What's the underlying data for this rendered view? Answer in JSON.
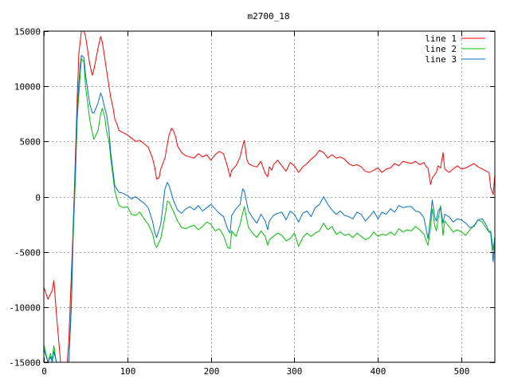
{
  "chart_data": {
    "type": "line",
    "title": "m2700_18",
    "xlabel": "",
    "ylabel": "",
    "xlim": [
      0,
      540
    ],
    "ylim": [
      -15000,
      15000
    ],
    "xticks": [
      "0",
      "100",
      "200",
      "300",
      "400",
      "500"
    ],
    "xtick_values": [
      0,
      100,
      200,
      300,
      400,
      500
    ],
    "yticks": [
      "15000",
      "10000",
      "5000",
      "0",
      "-5000",
      "-10000",
      "-15000"
    ],
    "ytick_values": [
      15000,
      10000,
      5000,
      0,
      -5000,
      -10000,
      -15000
    ],
    "grid": true,
    "legend_position": "top-right",
    "series": [
      {
        "name": "line 1",
        "color": "#ff0000",
        "x": [
          0,
          5,
          10,
          12,
          15,
          20,
          25,
          28,
          30,
          32,
          35,
          38,
          40,
          42,
          45,
          48,
          50,
          55,
          58,
          60,
          65,
          68,
          70,
          72,
          75,
          78,
          80,
          83,
          85,
          88,
          90,
          95,
          100,
          105,
          110,
          115,
          120,
          125,
          130,
          133,
          135,
          138,
          140,
          145,
          148,
          150,
          153,
          155,
          158,
          160,
          165,
          170,
          175,
          180,
          185,
          190,
          195,
          200,
          205,
          210,
          215,
          218,
          220,
          223,
          225,
          230,
          235,
          238,
          240,
          243,
          245,
          250,
          255,
          260,
          265,
          268,
          270,
          273,
          275,
          280,
          285,
          290,
          295,
          300,
          305,
          310,
          315,
          320,
          325,
          330,
          335,
          340,
          345,
          350,
          355,
          360,
          365,
          370,
          375,
          380,
          385,
          390,
          395,
          400,
          405,
          410,
          415,
          420,
          425,
          430,
          435,
          440,
          445,
          450,
          455,
          458,
          460,
          463,
          465,
          470,
          472,
          475,
          478,
          480,
          485,
          490,
          495,
          500,
          505,
          510,
          515,
          520,
          525,
          530,
          533,
          535,
          538,
          540
        ],
        "values": [
          -8200,
          -9300,
          -8500,
          -7600,
          -10500,
          -15000,
          -15000,
          -15000,
          -13000,
          -9000,
          -3000,
          4000,
          9000,
          13000,
          15000,
          15000,
          14500,
          12000,
          11000,
          11500,
          13500,
          14500,
          14000,
          13000,
          11500,
          10000,
          9000,
          8000,
          7000,
          6500,
          6000,
          5800,
          5600,
          5300,
          5000,
          5100,
          4800,
          4500,
          3500,
          2600,
          1600,
          1700,
          2500,
          3500,
          4800,
          5600,
          6200,
          6000,
          5400,
          4600,
          4000,
          3700,
          3600,
          3500,
          3900,
          3600,
          3800,
          3300,
          3800,
          4100,
          3900,
          3200,
          2700,
          1800,
          2400,
          2800,
          3600,
          4600,
          5100,
          3400,
          3000,
          2800,
          2700,
          3200,
          2100,
          1800,
          2700,
          2400,
          2900,
          3300,
          2800,
          2300,
          3100,
          2800,
          2200,
          2700,
          3000,
          3400,
          3700,
          4200,
          4000,
          3500,
          3800,
          3500,
          3600,
          3400,
          3000,
          2800,
          2900,
          2700,
          2300,
          2200,
          2400,
          2600,
          2200,
          2500,
          2600,
          3000,
          2800,
          3200,
          3100,
          3000,
          3200,
          2900,
          3100,
          2700,
          2600,
          1100,
          1700,
          2200,
          2800,
          2600,
          4000,
          2500,
          2200,
          2500,
          2800,
          2500,
          2600,
          2800,
          3000,
          2700,
          2500,
          2300,
          2200,
          800,
          200,
          2000
        ]
      },
      {
        "name": "line 2",
        "color": "#00c000",
        "x": [
          0,
          5,
          8,
          10,
          12,
          15,
          20,
          25,
          30,
          33,
          35,
          38,
          40,
          43,
          45,
          48,
          50,
          55,
          58,
          60,
          65,
          68,
          70,
          73,
          75,
          78,
          80,
          85,
          90,
          95,
          100,
          105,
          110,
          115,
          120,
          125,
          130,
          133,
          135,
          140,
          145,
          148,
          150,
          155,
          160,
          165,
          170,
          175,
          180,
          185,
          190,
          195,
          200,
          205,
          210,
          215,
          220,
          223,
          225,
          230,
          235,
          238,
          240,
          245,
          250,
          255,
          260,
          265,
          268,
          270,
          275,
          280,
          285,
          290,
          295,
          300,
          305,
          310,
          315,
          320,
          325,
          330,
          335,
          340,
          345,
          350,
          355,
          360,
          365,
          370,
          375,
          380,
          385,
          390,
          395,
          400,
          405,
          410,
          415,
          420,
          425,
          430,
          435,
          440,
          445,
          450,
          455,
          460,
          463,
          465,
          468,
          470,
          472,
          475,
          478,
          480,
          485,
          490,
          495,
          500,
          505,
          510,
          515,
          520,
          525,
          530,
          533,
          535,
          538,
          540
        ],
        "values": [
          -13400,
          -15000,
          -14200,
          -14800,
          -13500,
          -15000,
          -15000,
          -15000,
          -15000,
          -10000,
          -4000,
          2000,
          7000,
          10500,
          12500,
          12200,
          10000,
          7000,
          5800,
          5200,
          6000,
          7500,
          8000,
          7200,
          6000,
          5000,
          3500,
          500,
          -800,
          -1000,
          -900,
          -1600,
          -1700,
          -1400,
          -2000,
          -2500,
          -3300,
          -4300,
          -4600,
          -3800,
          -1800,
          -400,
          -500,
          -1300,
          -2200,
          -2800,
          -2900,
          -2700,
          -2600,
          -3000,
          -2700,
          -2300,
          -2500,
          -3100,
          -2900,
          -3500,
          -4600,
          -4700,
          -3100,
          -3600,
          -2500,
          -1500,
          -900,
          -2800,
          -3300,
          -3700,
          -3100,
          -3600,
          -4400,
          -3900,
          -3600,
          -3300,
          -3500,
          -4000,
          -3800,
          -3300,
          -4500,
          -3700,
          -3300,
          -3600,
          -3300,
          -3100,
          -2400,
          -3000,
          -2700,
          -3400,
          -3200,
          -3500,
          -3400,
          -3700,
          -3300,
          -3600,
          -3900,
          -3700,
          -3200,
          -3600,
          -3400,
          -3500,
          -3200,
          -3500,
          -2900,
          -3200,
          -3000,
          -3100,
          -2700,
          -3000,
          -3400,
          -4400,
          -2800,
          -1100,
          -2600,
          -3100,
          -2100,
          -800,
          -3500,
          -2200,
          -2700,
          -3200,
          -3000,
          -3200,
          -3500,
          -3000,
          -2600,
          -2100,
          -2300,
          -2900,
          -3200,
          -3100,
          -4800,
          -3600
        ]
      },
      {
        "name": "line 3",
        "color": "#0070d0",
        "x": [
          0,
          5,
          8,
          10,
          12,
          15,
          20,
          25,
          30,
          33,
          35,
          38,
          40,
          43,
          45,
          48,
          50,
          55,
          58,
          60,
          65,
          68,
          70,
          73,
          75,
          78,
          80,
          85,
          90,
          95,
          100,
          105,
          110,
          115,
          120,
          125,
          130,
          133,
          135,
          140,
          145,
          148,
          150,
          155,
          160,
          165,
          170,
          175,
          180,
          185,
          190,
          195,
          200,
          205,
          210,
          215,
          220,
          223,
          225,
          230,
          235,
          238,
          240,
          245,
          250,
          255,
          260,
          265,
          268,
          270,
          275,
          280,
          285,
          290,
          295,
          300,
          305,
          310,
          315,
          320,
          325,
          330,
          335,
          340,
          345,
          350,
          355,
          360,
          365,
          370,
          375,
          380,
          385,
          390,
          395,
          400,
          405,
          410,
          415,
          420,
          425,
          430,
          435,
          440,
          445,
          450,
          455,
          460,
          463,
          465,
          468,
          470,
          472,
          475,
          478,
          480,
          485,
          490,
          495,
          500,
          505,
          510,
          515,
          520,
          525,
          530,
          533,
          535,
          538,
          540
        ],
        "values": [
          -13800,
          -15000,
          -14500,
          -15000,
          -14000,
          -15000,
          -15000,
          -15000,
          -15000,
          -9500,
          -3000,
          3000,
          8000,
          11500,
          12800,
          12600,
          11000,
          8400,
          7600,
          7600,
          8500,
          9400,
          9000,
          8000,
          7500,
          6000,
          4000,
          1000,
          400,
          300,
          100,
          -200,
          0,
          -300,
          -600,
          -1000,
          -2200,
          -3300,
          -3700,
          -2500,
          700,
          1300,
          1000,
          -300,
          -1200,
          -1500,
          -1100,
          -900,
          -1200,
          -800,
          -1300,
          -1000,
          -700,
          -1100,
          -1500,
          -1800,
          -2900,
          -3300,
          -1700,
          -1100,
          -700,
          700,
          500,
          -1300,
          -1900,
          -2400,
          -1600,
          -2200,
          -3000,
          -2200,
          -1700,
          -1500,
          -1400,
          -2100,
          -1300,
          -1600,
          -2300,
          -1500,
          -1300,
          -1800,
          -1000,
          -700,
          0,
          -700,
          -1200,
          -1600,
          -1300,
          -1700,
          -1800,
          -2000,
          -1400,
          -1600,
          -2200,
          -1800,
          -1300,
          -2000,
          -1400,
          -1600,
          -1100,
          -1400,
          -800,
          -1000,
          -900,
          -900,
          -1300,
          -1400,
          -1900,
          -3800,
          -1800,
          -300,
          -1800,
          -2200,
          -1300,
          -1000,
          -2400,
          -1600,
          -1800,
          -2300,
          -2000,
          -2100,
          -2400,
          -2800,
          -2700,
          -2100,
          -2000,
          -2600,
          -3200,
          -3300,
          -5900,
          -3800
        ]
      }
    ]
  }
}
